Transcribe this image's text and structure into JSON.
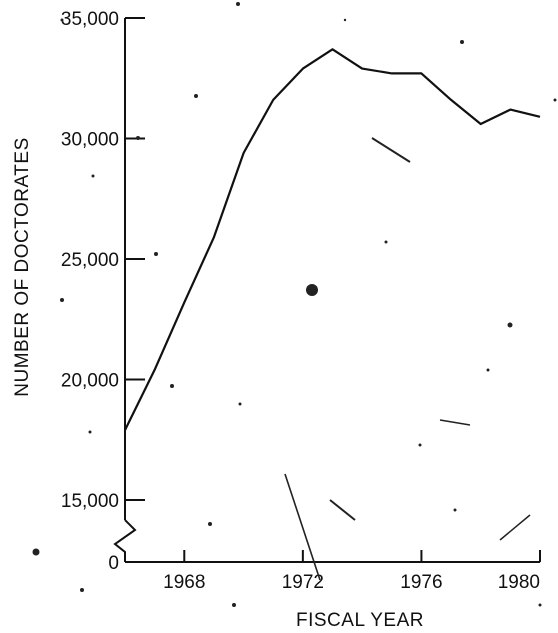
{
  "chart_data": {
    "type": "line",
    "xlabel": "FISCAL YEAR",
    "ylabel": "NUMBER OF DOCTORATES",
    "x_tick_labels": [
      "1968",
      "1972",
      "1976",
      "1980"
    ],
    "x_ticks": [
      1968,
      1972,
      1976,
      1980
    ],
    "y_tick_labels": [
      "35,000",
      "30,000",
      "25,000",
      "20,000",
      "15,000",
      "0"
    ],
    "y_ticks": [
      35000,
      30000,
      25000,
      20000,
      15000
    ],
    "xlim": [
      1966,
      1980
    ],
    "ylim": [
      15000,
      35000
    ],
    "axis_break": "between 0 and 15,000",
    "grid": false,
    "series": [
      {
        "x": [
          1966,
          1967,
          1968,
          1969,
          1970,
          1971,
          1972,
          1973,
          1974,
          1975,
          1976,
          1977,
          1978,
          1979,
          1980
        ],
        "values": [
          17900,
          20400,
          23200,
          25900,
          29400,
          31600,
          32900,
          33700,
          32900,
          32700,
          32700,
          31600,
          30600,
          31200,
          30900
        ]
      }
    ]
  }
}
